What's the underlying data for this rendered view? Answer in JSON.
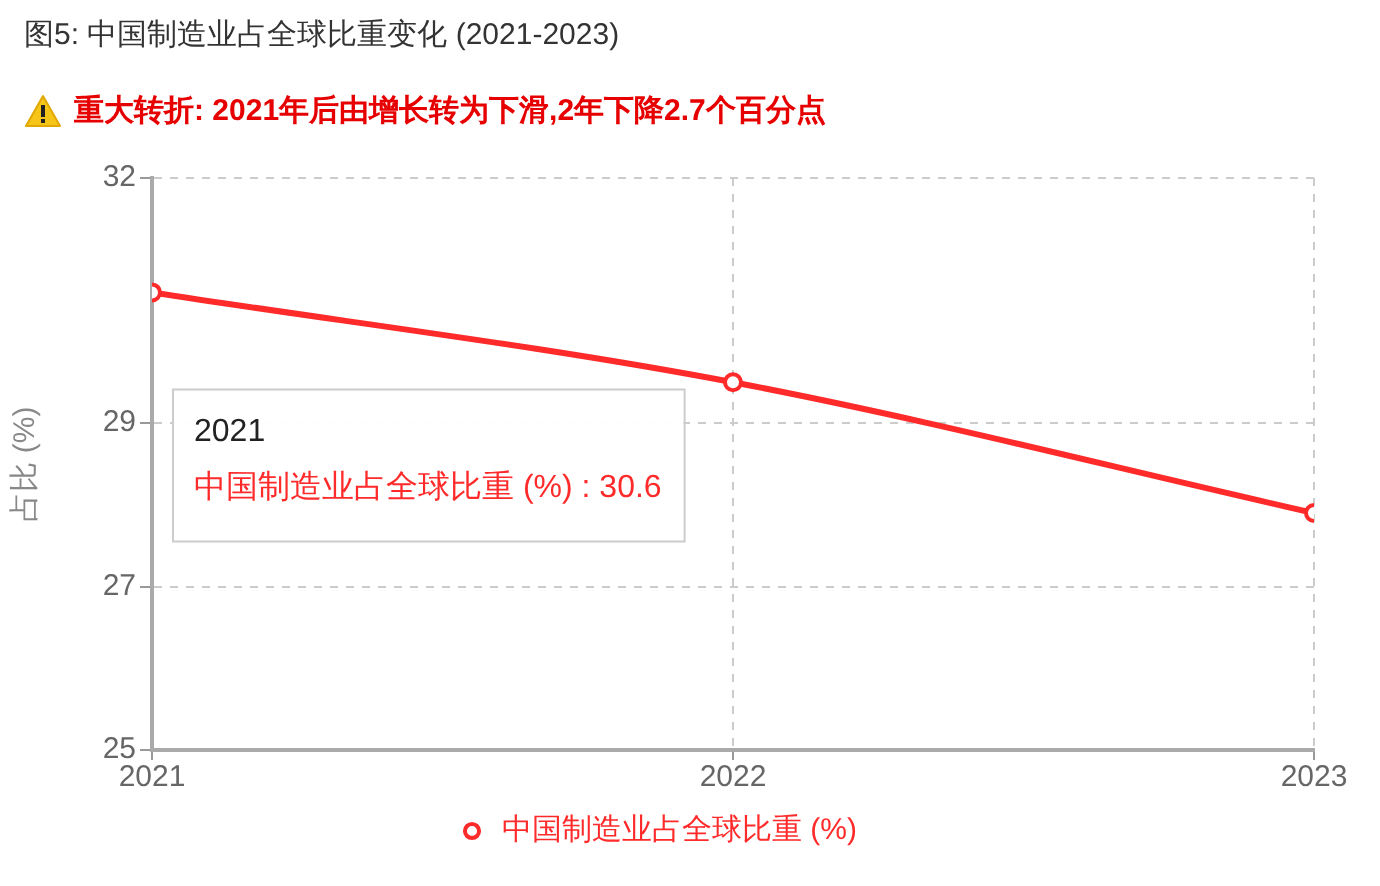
{
  "chart_data": {
    "type": "line",
    "title": "图5: 中国制造业占全球比重变化 (2021-2023)",
    "subtitle": "重大转折: 2021年后由增长转为下滑,2年下降2.7个百分点",
    "ylabel": "占比 (%)",
    "x": [
      2021,
      2022,
      2023
    ],
    "xlim": [
      2021,
      2023
    ],
    "xticks": [
      2021,
      2022,
      2023
    ],
    "series": [
      {
        "name": "中国制造业占全球比重 (%)",
        "color": "#ff2b2b",
        "values": [
          30.6,
          29.5,
          27.9
        ]
      }
    ],
    "ylim": [
      25,
      32
    ],
    "yticks": [
      25,
      27,
      29,
      32
    ],
    "grid": true,
    "legend": "bottom",
    "marker": "circle",
    "line_style": "solid",
    "annotations": [
      "2021",
      "中国制造业占全球比重 (%) : 30.6"
    ]
  }
}
